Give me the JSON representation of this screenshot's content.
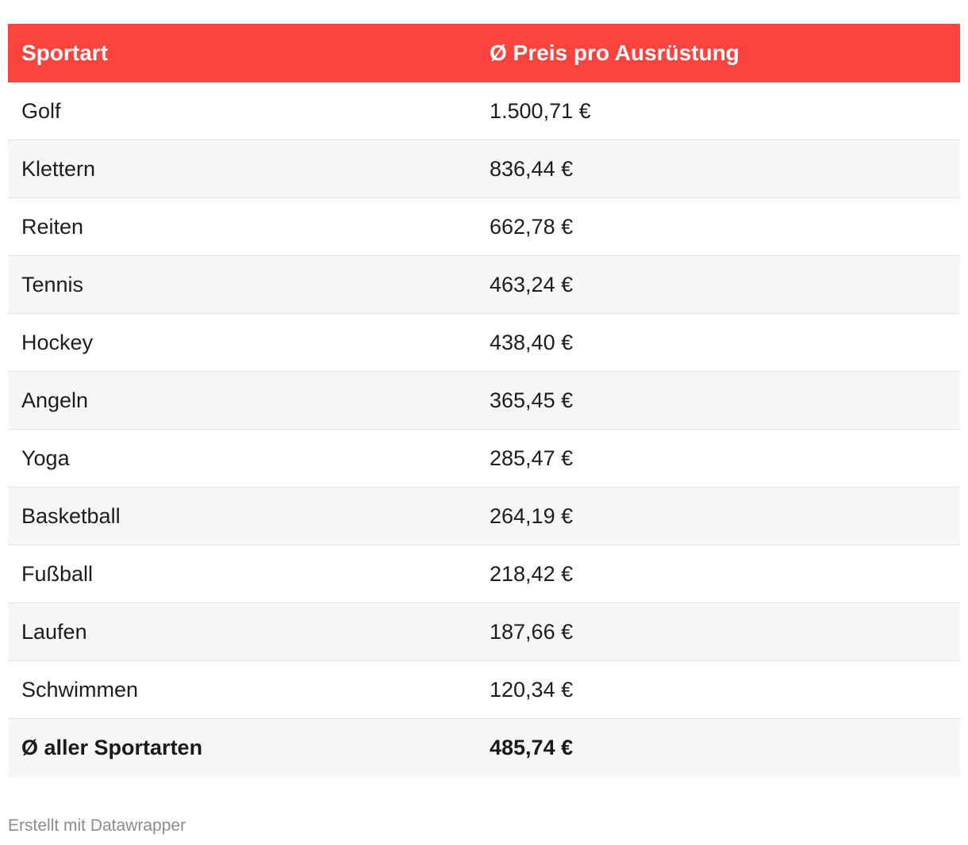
{
  "chart_data": {
    "type": "table",
    "columns": [
      "Sportart",
      "Ø Preis pro Ausrüstung"
    ],
    "rows": [
      {
        "sport": "Golf",
        "price": "1.500,71 €"
      },
      {
        "sport": "Klettern",
        "price": "836,44 €"
      },
      {
        "sport": "Reiten",
        "price": "662,78 €"
      },
      {
        "sport": "Tennis",
        "price": "463,24 €"
      },
      {
        "sport": "Hockey",
        "price": "438,40 €"
      },
      {
        "sport": "Angeln",
        "price": "365,45 €"
      },
      {
        "sport": "Yoga",
        "price": "285,47 €"
      },
      {
        "sport": "Basketball",
        "price": "264,19 €"
      },
      {
        "sport": "Fußball",
        "price": "218,42 €"
      },
      {
        "sport": "Laufen",
        "price": "187,66 €"
      },
      {
        "sport": "Schwimmen",
        "price": "120,34 €"
      }
    ],
    "total": {
      "sport": "Ø aller Sportarten",
      "price": "485,74 €"
    }
  },
  "colors": {
    "header_background": "#fd433d",
    "header_text": "#ffffff",
    "alternate_row": "#f7f7f7"
  },
  "footer": {
    "credit": "Erstellt mit Datawrapper"
  }
}
